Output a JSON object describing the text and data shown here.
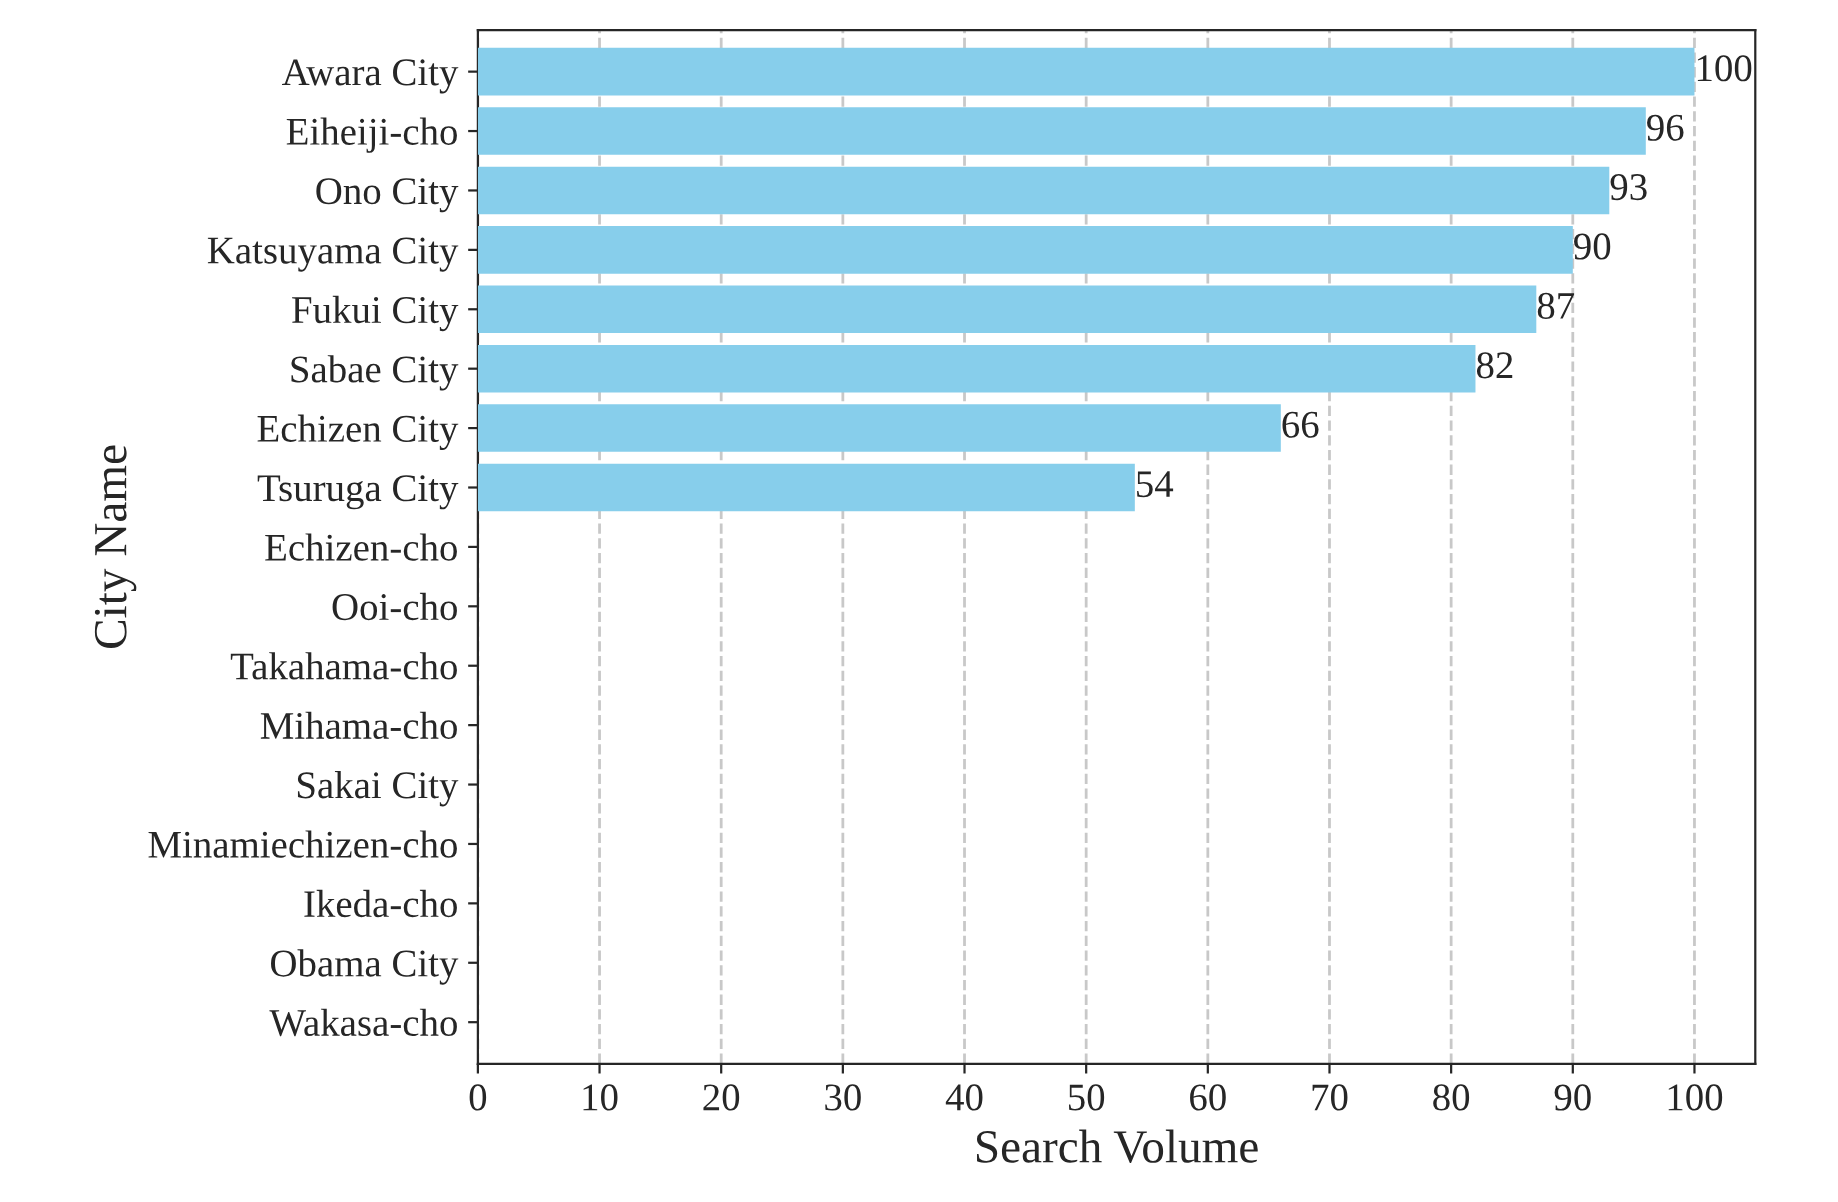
{
  "chart_data": {
    "type": "bar",
    "orientation": "horizontal",
    "xlabel": "Search Volume",
    "ylabel": "City Name",
    "categories": [
      "Awara City",
      "Eiheiji-cho",
      "Ono City",
      "Katsuyama City",
      "Fukui City",
      "Sabae City",
      "Echizen City",
      "Tsuruga City",
      "Echizen-cho",
      "Ooi-cho",
      "Takahama-cho",
      "Mihama-cho",
      "Sakai City",
      "Minamiechizen-cho",
      "Ikeda-cho",
      "Obama City",
      "Wakasa-cho"
    ],
    "values": [
      100,
      96,
      93,
      90,
      87,
      82,
      66,
      54,
      0,
      0,
      0,
      0,
      0,
      0,
      0,
      0,
      0
    ],
    "value_labels": [
      "100",
      "96",
      "93",
      "90",
      "87",
      "82",
      "66",
      "54",
      null,
      null,
      null,
      null,
      null,
      null,
      null,
      null,
      null
    ],
    "color": "#87ceeb",
    "xlim": [
      0,
      105
    ],
    "xticks": [
      0,
      10,
      20,
      30,
      40,
      50,
      60,
      70,
      80,
      90,
      100
    ],
    "grid": "x"
  }
}
